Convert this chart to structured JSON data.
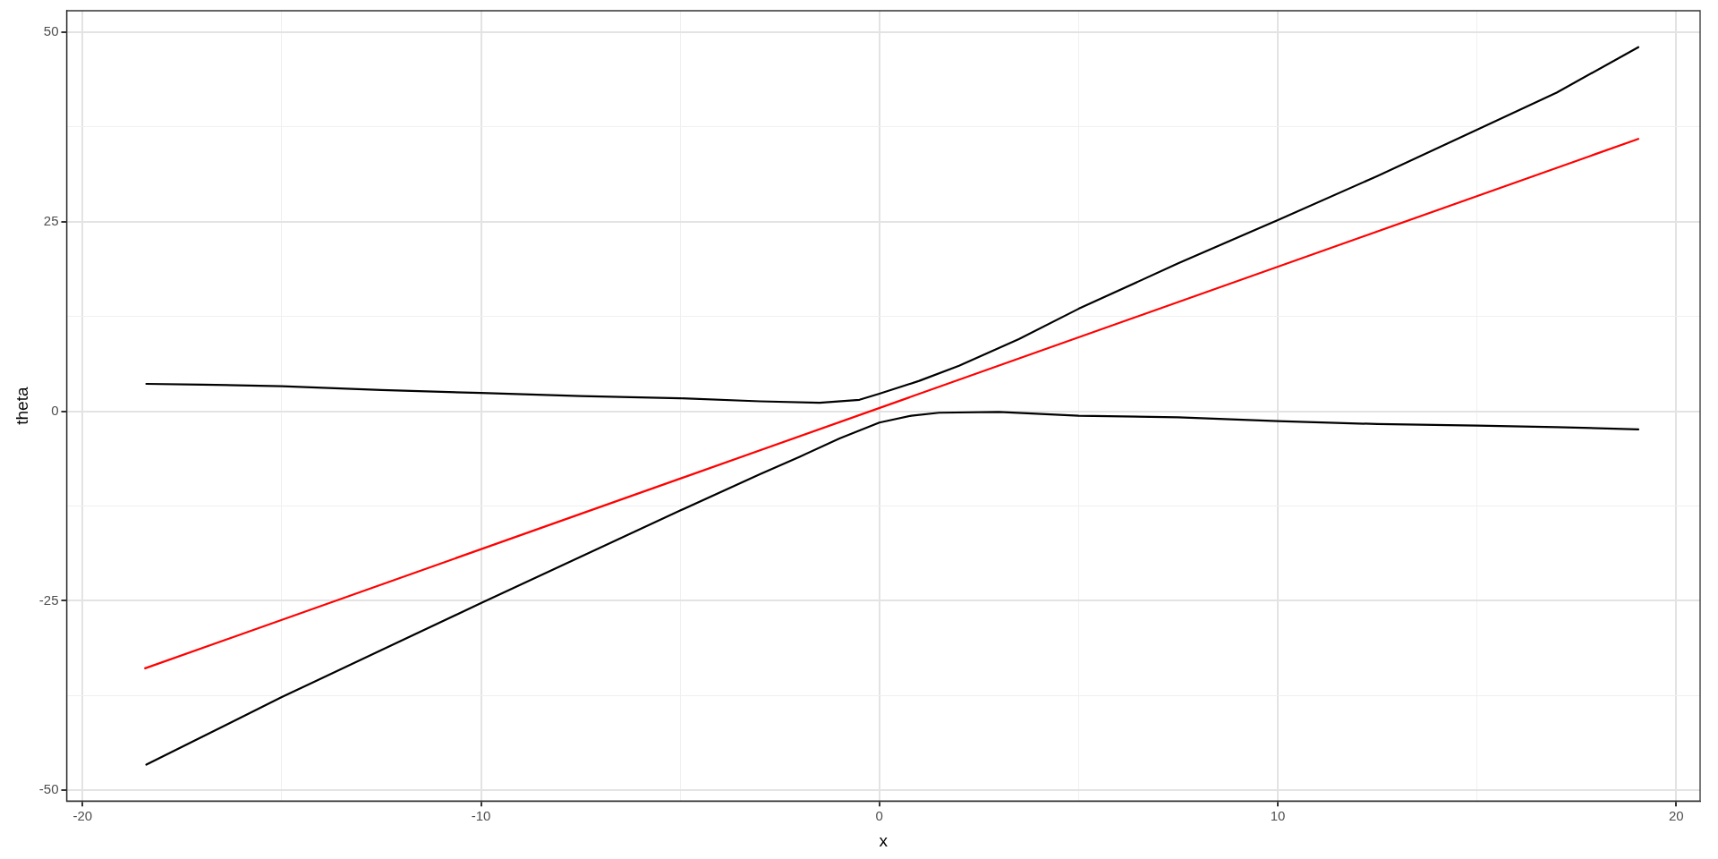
{
  "chart_data": {
    "type": "line",
    "xlabel": "x",
    "ylabel": "theta",
    "xlim": [
      -20.4,
      20.6
    ],
    "ylim": [
      -51.4,
      52.8
    ],
    "xticks": [
      -20,
      {
        "value": -15,
        "label": null
      },
      -10,
      {
        "value": -5,
        "label": null
      },
      0,
      {
        "value": 5,
        "label": null
      },
      10,
      {
        "value": 15,
        "label": null
      },
      20
    ],
    "yticks": [
      -50,
      {
        "value": -37.5,
        "label": null
      },
      -25,
      {
        "value": -12.5,
        "label": null
      },
      0,
      {
        "value": 12.5,
        "label": null
      },
      25,
      {
        "value": 37.5,
        "label": null
      },
      50
    ],
    "grid": true,
    "legend": false,
    "marker": "none",
    "line_style": "solid",
    "series": [
      {
        "color": "#000000",
        "x": [
          -18.4,
          -17,
          -15,
          -12.5,
          -10,
          -7.5,
          -5,
          -3,
          -1.5,
          -0.5,
          0,
          1,
          2,
          3.5,
          5,
          7.5,
          10,
          12.5,
          15,
          17,
          19.05
        ],
        "values": [
          3.6,
          3.5,
          3.3,
          2.8,
          2.4,
          2,
          1.7,
          1.3,
          1.1,
          1.5,
          2.3,
          4,
          6,
          9.5,
          13.5,
          19.5,
          25.2,
          31,
          37.1,
          42,
          48
        ]
      },
      {
        "color": "#000000",
        "x": [
          -18.4,
          -15,
          -12.5,
          -10,
          -7.5,
          -5,
          -3,
          -2,
          -1,
          0,
          0.8,
          1.5,
          3,
          5,
          7.5,
          10,
          12.5,
          15,
          17,
          19.05
        ],
        "values": [
          -46.6,
          -37.7,
          -31.5,
          -25.3,
          -19.2,
          -13.1,
          -8.3,
          -6,
          -3.6,
          -1.5,
          -0.6,
          -0.2,
          -0.1,
          -0.6,
          -0.8,
          -1.3,
          -1.7,
          -1.9,
          -2.1,
          -2.4
        ]
      },
      {
        "color": "#ff0000",
        "x": [
          -18.43,
          19.05
        ],
        "values": [
          -33.9,
          35.9
        ]
      }
    ]
  }
}
